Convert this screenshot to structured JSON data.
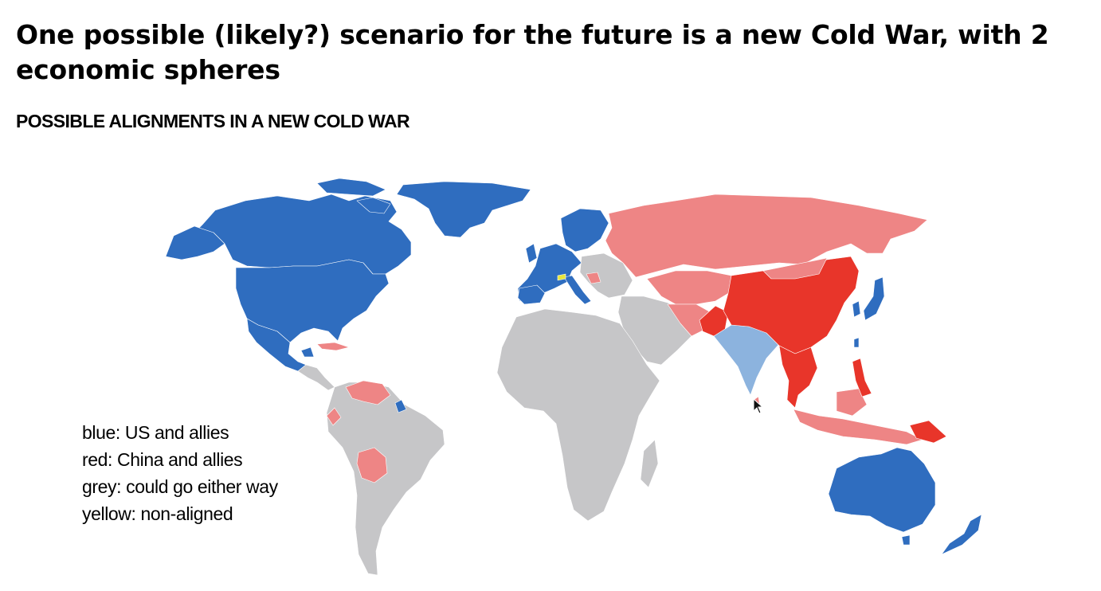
{
  "slide": {
    "title": "One possible (likely?) scenario for the future is a new Cold War, with 2 economic spheres",
    "subtitle": "POSSIBLE ALIGNMENTS IN A NEW COLD WAR"
  },
  "legend": [
    {
      "label": "blue: US and allies",
      "color": "#2f6dbf"
    },
    {
      "label": "red: China and allies",
      "color": "#e8352a"
    },
    {
      "label": "grey: could go either way",
      "color": "#c6c6c8"
    },
    {
      "label": "yellow: non-aligned",
      "color": "#e8e63c"
    }
  ],
  "colors": {
    "us_allies": "#2f6dbf",
    "us_leaning": "#8cb3de",
    "china_allies": "#e8352a",
    "china_leaning": "#ee8585",
    "either_way": "#c6c6c8",
    "non_aligned": "#e8e63c"
  },
  "cursor": {
    "icon": "mouse-pointer-icon"
  }
}
